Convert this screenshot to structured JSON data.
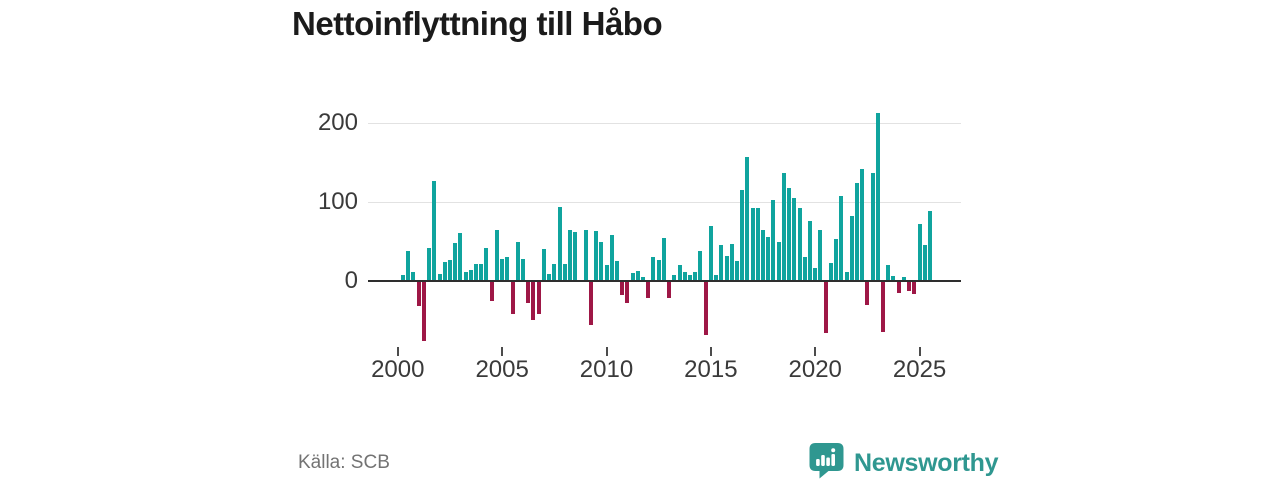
{
  "title": "Nettoinflyttning till Håbo",
  "source_label": "Källa: SCB",
  "brand": {
    "name": "Newsworthy",
    "icon": "speech-bubble-bar-chart-icon"
  },
  "colors": {
    "positive_bar": "#10a49e",
    "negative_bar": "#9e1746",
    "brand_teal": "#2f9790",
    "axis_line": "#2e2e2e",
    "gridline": "#e2e2e2",
    "axis_text": "#3a3a3a",
    "source_text": "#737373",
    "title_text": "#1b1b1b"
  },
  "chart_data": {
    "type": "bar",
    "title": "Nettoinflyttning till Håbo",
    "source": "Källa: SCB",
    "frequency": "quarterly",
    "grid": "horizontal",
    "x_year_ticks": [
      2000,
      2005,
      2010,
      2015,
      2020,
      2025
    ],
    "y_ticks": [
      {
        "value": 200,
        "label": "200"
      },
      {
        "value": 100,
        "label": "100"
      },
      {
        "value": 0,
        "label": "0"
      }
    ],
    "ylim": [
      -90,
      225
    ],
    "categories": [
      "2000 Q2",
      "2000 Q3",
      "2000 Q4",
      "2001 Q1",
      "2001 Q2",
      "2001 Q3",
      "2001 Q4",
      "2002 Q1",
      "2002 Q2",
      "2002 Q3",
      "2002 Q4",
      "2003 Q1",
      "2003 Q2",
      "2003 Q3",
      "2003 Q4",
      "2004 Q1",
      "2004 Q2",
      "2004 Q3",
      "2004 Q4",
      "2005 Q1",
      "2005 Q2",
      "2005 Q3",
      "2005 Q4",
      "2006 Q1",
      "2006 Q2",
      "2006 Q3",
      "2006 Q4",
      "2007 Q1",
      "2007 Q2",
      "2007 Q3",
      "2007 Q4",
      "2008 Q1",
      "2008 Q2",
      "2008 Q3",
      "2008 Q4",
      "2009 Q1",
      "2009 Q2",
      "2009 Q3",
      "2009 Q4",
      "2010 Q1",
      "2010 Q2",
      "2010 Q3",
      "2010 Q4",
      "2011 Q1",
      "2011 Q2",
      "2011 Q3",
      "2011 Q4",
      "2012 Q1",
      "2012 Q2",
      "2012 Q3",
      "2012 Q4",
      "2013 Q1",
      "2013 Q2",
      "2013 Q3",
      "2013 Q4",
      "2014 Q1",
      "2014 Q2",
      "2014 Q3",
      "2014 Q4",
      "2015 Q1",
      "2015 Q2",
      "2015 Q3",
      "2015 Q4",
      "2016 Q1",
      "2016 Q2",
      "2016 Q3",
      "2016 Q4",
      "2017 Q1",
      "2017 Q2",
      "2017 Q3",
      "2017 Q4",
      "2018 Q1",
      "2018 Q2",
      "2018 Q3",
      "2018 Q4",
      "2019 Q1",
      "2019 Q2",
      "2019 Q3",
      "2019 Q4",
      "2020 Q1",
      "2020 Q2",
      "2020 Q3",
      "2020 Q4",
      "2021 Q1",
      "2021 Q2",
      "2021 Q3",
      "2021 Q4",
      "2022 Q1",
      "2022 Q2",
      "2022 Q3",
      "2022 Q4",
      "2023 Q1",
      "2023 Q2",
      "2023 Q3",
      "2023 Q4",
      "2024 Q1",
      "2024 Q2",
      "2024 Q3",
      "2024 Q4",
      "2025 Q1",
      "2025 Q2",
      "2025 Q3"
    ],
    "values": [
      8,
      38,
      11,
      -31,
      -75,
      42,
      127,
      9,
      24,
      27,
      48,
      61,
      11,
      14,
      22,
      21,
      42,
      -24,
      65,
      28,
      30,
      -41,
      50,
      28,
      -26,
      -48,
      -41,
      41,
      9,
      22,
      94,
      21,
      64,
      62,
      0,
      65,
      -55,
      63,
      50,
      20,
      58,
      25,
      -17,
      -27,
      10,
      13,
      5,
      -20,
      30,
      26,
      55,
      -20,
      8,
      20,
      12,
      8,
      12,
      38,
      -67,
      70,
      8,
      45,
      32,
      47,
      25,
      115,
      157,
      92,
      92,
      65,
      56,
      102,
      49,
      137,
      118,
      105,
      93,
      31,
      76,
      16,
      65,
      -65,
      23,
      53,
      108,
      12,
      82,
      124,
      142,
      -29,
      137,
      213,
      -63,
      20,
      6,
      -14,
      5,
      -12,
      -15,
      72,
      45,
      88
    ]
  }
}
